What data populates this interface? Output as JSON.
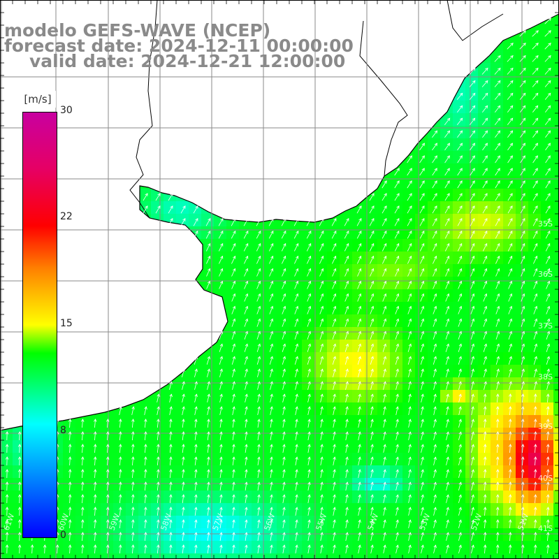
{
  "title": {
    "model": "modelo GEFS-WAVE (NCEP)",
    "forecast": "forecast date: 2024-12-11 00:00:00",
    "valid": "valid date: 2024-12-21 12:00:00"
  },
  "legend": {
    "unit": "[m/s]",
    "ticks": [
      "30",
      "22",
      "15",
      "8",
      "0"
    ],
    "tick_values": [
      30,
      22,
      15,
      8,
      0
    ],
    "range": [
      0,
      30
    ]
  },
  "axes": {
    "lon_labels": [
      "61W",
      "60W",
      "59W",
      "58W",
      "57W",
      "56W",
      "55W",
      "54W",
      "53W",
      "52W",
      "51W"
    ],
    "lat_labels": [
      "35S",
      "36S",
      "37S",
      "38S",
      "39S",
      "40S",
      "41S"
    ]
  },
  "colors": {
    "land": "#ffffff",
    "grid": "#8a8a8a",
    "coast": "#000000",
    "arrow": "#ffffff",
    "title": "#8a8a8a"
  }
}
